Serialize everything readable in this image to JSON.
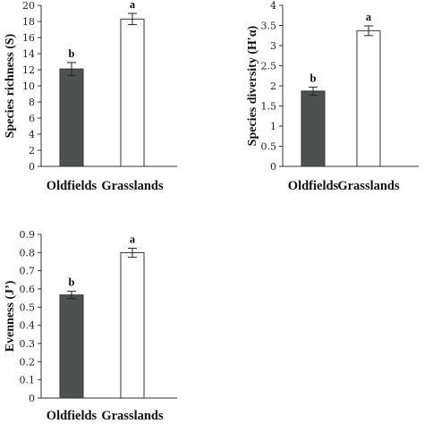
{
  "chart_data": [
    {
      "type": "bar",
      "categories": [
        "Oldfields",
        "Grasslands"
      ],
      "values": [
        12.1,
        18.3
      ],
      "errors": [
        0.8,
        0.7
      ],
      "significance": [
        "b",
        "a"
      ],
      "bar_colors": [
        "#4d5251",
        "#ffffff"
      ],
      "ylabel": "Species richness (S)",
      "ylim": [
        0,
        20
      ],
      "yticks": [
        "0",
        "2",
        "4",
        "6",
        "8",
        "10",
        "12",
        "14",
        "16",
        "18",
        "20"
      ],
      "grid": false
    },
    {
      "type": "bar",
      "categories": [
        "Oldfields",
        "Grasslands"
      ],
      "values": [
        1.87,
        3.37
      ],
      "errors": [
        0.1,
        0.12
      ],
      "significance": [
        "b",
        "a"
      ],
      "bar_colors": [
        "#4d5251",
        "#ffffff"
      ],
      "ylabel": "Species diversity (H′α)",
      "ylim": [
        0,
        4
      ],
      "yticks": [
        "0",
        "0.5",
        "1",
        "1.5",
        "2",
        "2.5",
        "3",
        "3.5",
        "4"
      ],
      "grid": false
    },
    {
      "type": "bar",
      "categories": [
        "Oldfields",
        "Grasslands"
      ],
      "values": [
        0.567,
        0.799
      ],
      "errors": [
        0.02,
        0.025
      ],
      "significance": [
        "b",
        "a"
      ],
      "bar_colors": [
        "#4d5251",
        "#ffffff"
      ],
      "ylabel": "Evenness (J’)",
      "ylim": [
        0,
        0.9
      ],
      "yticks": [
        "0",
        "0.1",
        "0.2",
        "0.3",
        "0.4",
        "0.5",
        "0.6",
        "0.7",
        "0.8",
        "0.9"
      ],
      "grid": false
    }
  ]
}
